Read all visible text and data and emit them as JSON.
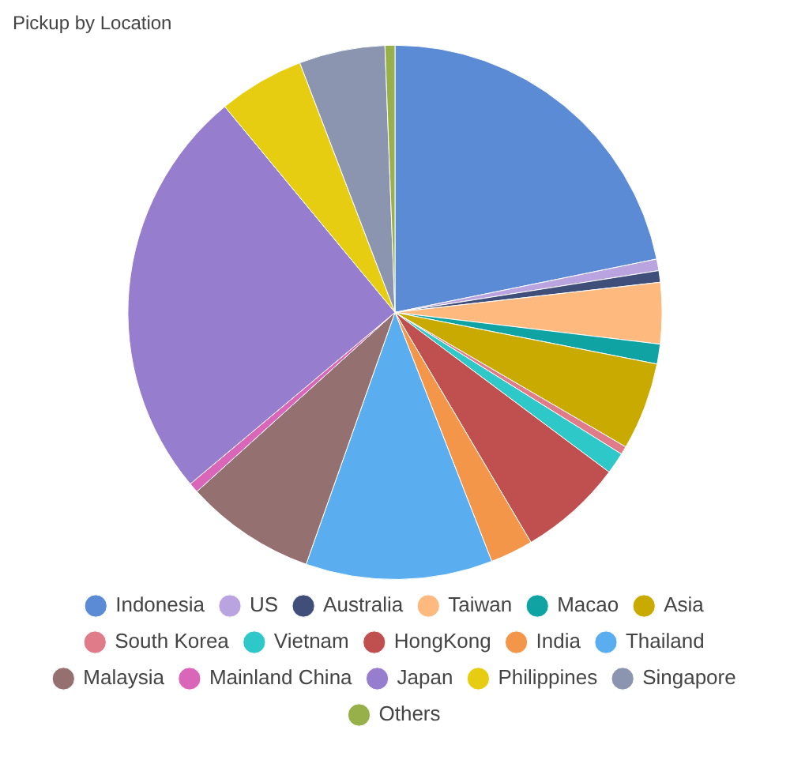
{
  "chart_data": {
    "type": "pie",
    "title": "Pickup by Location",
    "categories": [
      "Indonesia",
      "US",
      "Australia",
      "Taiwan",
      "Macao",
      "Asia",
      "South Korea",
      "Vietnam",
      "HongKong",
      "India",
      "Thailand",
      "Malaysia",
      "Mainland China",
      "Japan",
      "Philippines",
      "Singapore",
      "Others"
    ],
    "values": [
      21.8,
      0.7,
      0.7,
      3.7,
      1.2,
      5.3,
      0.5,
      1.3,
      6.3,
      2.6,
      11.3,
      7.9,
      0.6,
      25.1,
      5.2,
      5.2,
      0.6
    ],
    "colors": [
      "#5b8bd4",
      "#b9a4e0",
      "#3f4f7a",
      "#fdb97e",
      "#0fa3a3",
      "#c9aa00",
      "#e07b8a",
      "#2ec8c8",
      "#c05050",
      "#f4964a",
      "#5aaef0",
      "#957070",
      "#d966b8",
      "#977dcd",
      "#e6cd12",
      "#8b95b0",
      "#98b04a"
    ],
    "legend": "bottom"
  }
}
